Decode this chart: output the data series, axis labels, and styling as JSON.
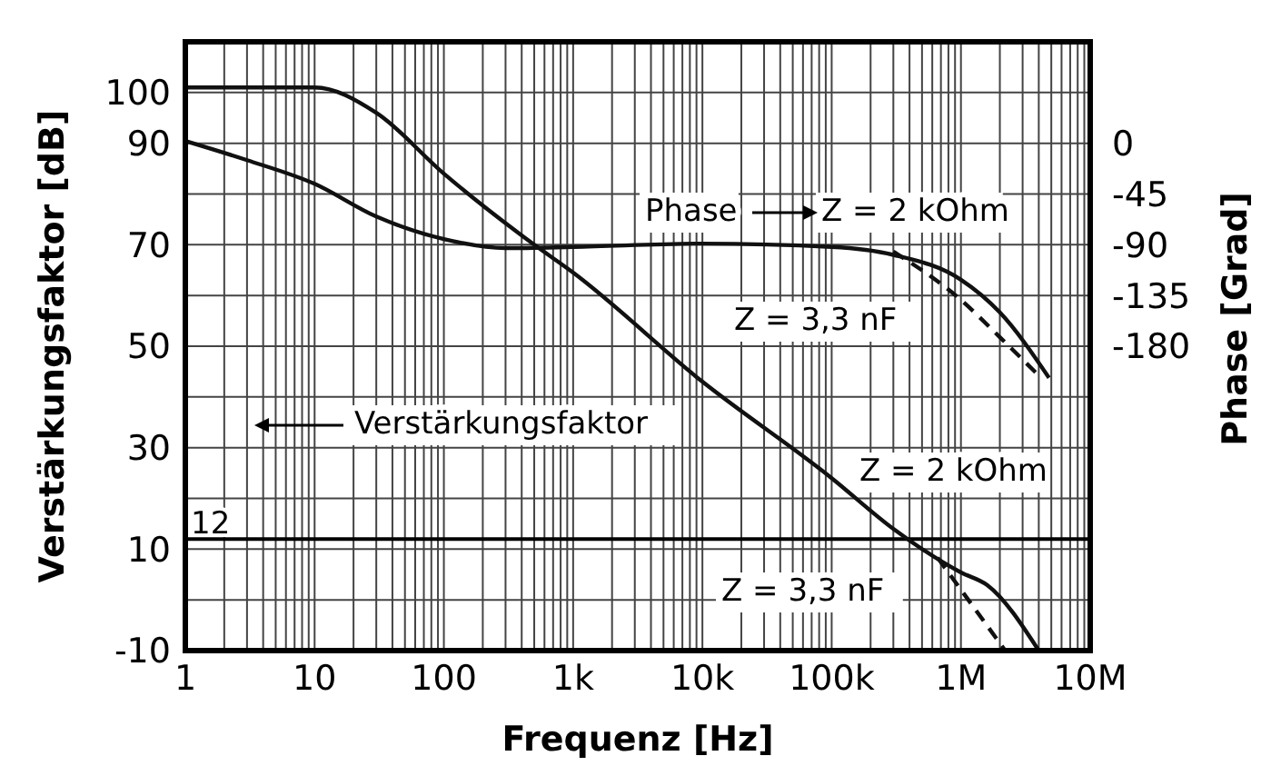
{
  "chart_data": {
    "type": "line",
    "xlabel": "Frequenz [Hz]",
    "ylabel": "Verstärkungsfaktor [dB]",
    "y2label": "Phase [Grad]",
    "log": "x",
    "grid": true,
    "xlim": [
      1,
      10000000
    ],
    "xticks": [
      {
        "value": 1,
        "label": "1"
      },
      {
        "value": 2,
        "label": null
      },
      {
        "value": 3,
        "label": null
      },
      {
        "value": 4,
        "label": null
      },
      {
        "value": 5,
        "label": null
      },
      {
        "value": 6,
        "label": null
      },
      {
        "value": 7,
        "label": null
      },
      {
        "value": 8,
        "label": null
      },
      {
        "value": 9,
        "label": null
      },
      {
        "value": 10,
        "label": "10"
      },
      {
        "value": 20,
        "label": null
      },
      {
        "value": 30,
        "label": null
      },
      {
        "value": 40,
        "label": null
      },
      {
        "value": 50,
        "label": null
      },
      {
        "value": 60,
        "label": null
      },
      {
        "value": 70,
        "label": null
      },
      {
        "value": 80,
        "label": null
      },
      {
        "value": 90,
        "label": null
      },
      {
        "value": 100,
        "label": "100"
      },
      {
        "value": 200,
        "label": null
      },
      {
        "value": 300,
        "label": null
      },
      {
        "value": 400,
        "label": null
      },
      {
        "value": 500,
        "label": null
      },
      {
        "value": 600,
        "label": null
      },
      {
        "value": 700,
        "label": null
      },
      {
        "value": 800,
        "label": null
      },
      {
        "value": 900,
        "label": null
      },
      {
        "value": 1000,
        "label": "1k"
      },
      {
        "value": 2000,
        "label": null
      },
      {
        "value": 3000,
        "label": null
      },
      {
        "value": 4000,
        "label": null
      },
      {
        "value": 5000,
        "label": null
      },
      {
        "value": 6000,
        "label": null
      },
      {
        "value": 7000,
        "label": null
      },
      {
        "value": 8000,
        "label": null
      },
      {
        "value": 9000,
        "label": null
      },
      {
        "value": 10000,
        "label": "10k"
      },
      {
        "value": 20000,
        "label": null
      },
      {
        "value": 30000,
        "label": null
      },
      {
        "value": 40000,
        "label": null
      },
      {
        "value": 50000,
        "label": null
      },
      {
        "value": 60000,
        "label": null
      },
      {
        "value": 70000,
        "label": null
      },
      {
        "value": 80000,
        "label": null
      },
      {
        "value": 90000,
        "label": null
      },
      {
        "value": 100000,
        "label": "100k"
      },
      {
        "value": 200000,
        "label": null
      },
      {
        "value": 300000,
        "label": null
      },
      {
        "value": 400000,
        "label": null
      },
      {
        "value": 500000,
        "label": null
      },
      {
        "value": 600000,
        "label": null
      },
      {
        "value": 700000,
        "label": null
      },
      {
        "value": 800000,
        "label": null
      },
      {
        "value": 900000,
        "label": null
      },
      {
        "value": 1000000,
        "label": "1M"
      },
      {
        "value": 2000000,
        "label": null
      },
      {
        "value": 3000000,
        "label": null
      },
      {
        "value": 4000000,
        "label": null
      },
      {
        "value": 5000000,
        "label": null
      },
      {
        "value": 6000000,
        "label": null
      },
      {
        "value": 7000000,
        "label": null
      },
      {
        "value": 8000000,
        "label": null
      },
      {
        "value": 9000000,
        "label": null
      },
      {
        "value": 10000000,
        "label": "10M"
      }
    ],
    "ylim": [
      -10,
      110
    ],
    "yticks": [
      -10,
      {
        "value": 0,
        "label": null
      },
      10,
      {
        "value": 20,
        "label": null
      },
      30,
      {
        "value": 40,
        "label": null
      },
      50,
      {
        "value": 60,
        "label": null
      },
      70,
      {
        "value": 80,
        "label": null
      },
      90,
      100,
      {
        "value": 110,
        "label": null
      }
    ],
    "y2lim": [
      -450,
      90
    ],
    "y2ticks": [
      0,
      -45,
      -90,
      -135,
      -180
    ],
    "series": [
      {
        "color": "#111111",
        "line_style": "solid",
        "x": [
          1,
          10,
          30,
          100,
          500,
          1000,
          10000,
          100000,
          300000,
          1000000,
          1600000,
          4000000
        ],
        "values": [
          101,
          101,
          96,
          84,
          70,
          64.5,
          43,
          24,
          14,
          5.4,
          2.9,
          -10
        ]
      },
      {
        "color": "#111111",
        "line_style": "dashed",
        "x": [
          660000,
          1000000,
          2200000
        ],
        "values": [
          8.3,
          2,
          -10
        ]
      },
      {
        "color": "#111111",
        "line_style": "solid",
        "axis": "y2",
        "x": [
          1,
          3,
          10,
          30,
          100,
          300,
          1000,
          10000,
          100000,
          300000,
          1000000,
          2000000,
          4800000
        ],
        "values": [
          2,
          -15,
          -36,
          -65,
          -85,
          -93,
          -92,
          -89,
          -92,
          -99,
          -121,
          -150,
          -208
        ]
      },
      {
        "color": "#111111",
        "line_style": "dashed",
        "axis": "y2",
        "x": [
          300000,
          1000000,
          2000000,
          4000000
        ],
        "values": [
          -96,
          -139,
          -172,
          -206
        ]
      }
    ],
    "ref_lines": [
      {
        "axis": "y",
        "value": 12,
        "label": "12",
        "color": "#000000"
      }
    ],
    "annotations": [
      "Verstärkungsfaktor",
      "Phase",
      "Z = 2 kOhm",
      "Z = 3,3 nF",
      "Z = 2 kOhm",
      "Z = 3,3 nF"
    ]
  }
}
